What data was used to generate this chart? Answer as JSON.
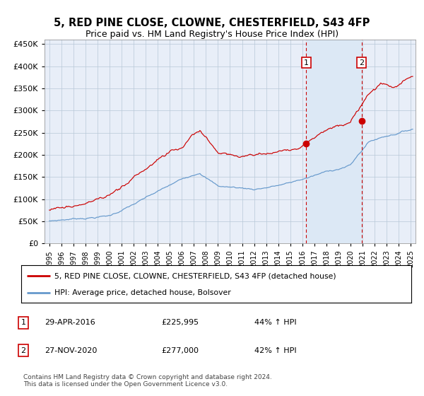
{
  "title": "5, RED PINE CLOSE, CLOWNE, CHESTERFIELD, S43 4FP",
  "subtitle": "Price paid vs. HM Land Registry's House Price Index (HPI)",
  "footer": "Contains HM Land Registry data © Crown copyright and database right 2024.\nThis data is licensed under the Open Government Licence v3.0.",
  "legend_line1": "5, RED PINE CLOSE, CLOWNE, CHESTERFIELD, S43 4FP (detached house)",
  "legend_line2": "HPI: Average price, detached house, Bolsover",
  "marker1_date": "29-APR-2016",
  "marker1_price": "£225,995",
  "marker1_hpi": "44% ↑ HPI",
  "marker2_date": "27-NOV-2020",
  "marker2_price": "£277,000",
  "marker2_hpi": "42% ↑ HPI",
  "red_color": "#cc0000",
  "blue_color": "#6699cc",
  "shade_color": "#dce8f5",
  "background_color": "#e8eef8",
  "ylim": [
    0,
    460000
  ],
  "yticks": [
    0,
    50000,
    100000,
    150000,
    200000,
    250000,
    300000,
    350000,
    400000,
    450000
  ],
  "marker1_x": 2016.33,
  "marker2_x": 2020.92,
  "marker1_y": 225995,
  "marker2_y": 277000,
  "xlim_left": 1994.6,
  "xlim_right": 2025.4
}
